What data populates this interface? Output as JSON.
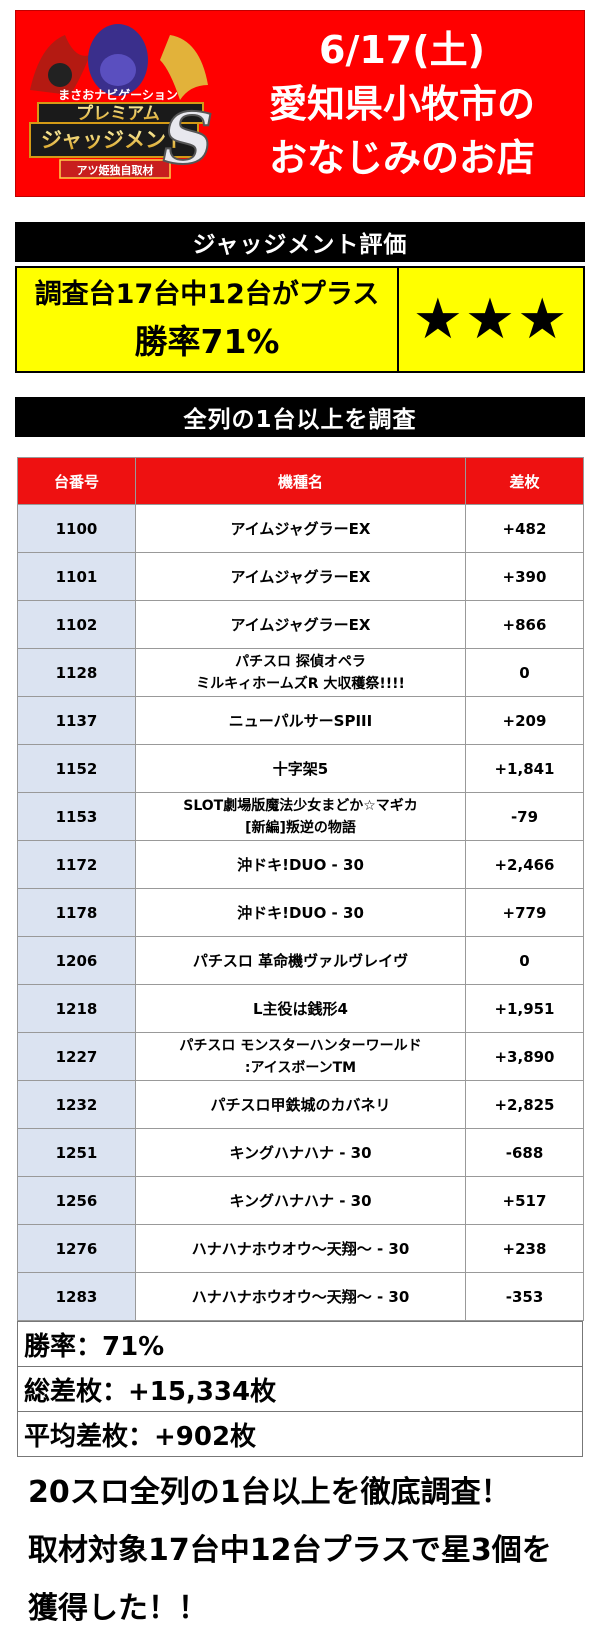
{
  "header": {
    "logo_lines": [
      "まさおナビゲーション",
      "プレミアム",
      "ジャッジメント",
      "アツ姫独自取材"
    ],
    "logo_letter": "S",
    "date": "6/17(土)",
    "line2": "愛知県小牧市の",
    "line3": "おなじみのお店"
  },
  "evaluation": {
    "title": "ジャッジメント評価",
    "summary_line1": "調査台17台中12台がプラス",
    "summary_line2": "勝率71%",
    "stars": "★★★"
  },
  "survey_title": "全列の1台以上を調査",
  "table": {
    "headers": [
      "台番号",
      "機種名",
      "差枚"
    ],
    "rows": [
      {
        "no": "1100",
        "name": [
          "アイムジャグラーEX"
        ],
        "diff": "+482"
      },
      {
        "no": "1101",
        "name": [
          "アイムジャグラーEX"
        ],
        "diff": "+390"
      },
      {
        "no": "1102",
        "name": [
          "アイムジャグラーEX"
        ],
        "diff": "+866"
      },
      {
        "no": "1128",
        "name": [
          "パチスロ 探偵オペラ",
          "ミルキィホームズR 大収穫祭!!!!"
        ],
        "diff": "0"
      },
      {
        "no": "1137",
        "name": [
          "ニューパルサーSPIII"
        ],
        "diff": "+209"
      },
      {
        "no": "1152",
        "name": [
          "十字架5"
        ],
        "diff": "+1,841"
      },
      {
        "no": "1153",
        "name": [
          "SLOT劇場版魔法少女まどか☆マギカ",
          "[新編]叛逆の物語"
        ],
        "diff": "-79"
      },
      {
        "no": "1172",
        "name": [
          "沖ドキ!DUO - 30"
        ],
        "diff": "+2,466"
      },
      {
        "no": "1178",
        "name": [
          "沖ドキ!DUO - 30"
        ],
        "diff": "+779"
      },
      {
        "no": "1206",
        "name": [
          "パチスロ 革命機ヴァルヴレイヴ"
        ],
        "diff": "0"
      },
      {
        "no": "1218",
        "name": [
          "L主役は銭形4"
        ],
        "diff": "+1,951"
      },
      {
        "no": "1227",
        "name": [
          "パチスロ モンスターハンターワールド",
          ":アイスボーンTM"
        ],
        "diff": "+3,890"
      },
      {
        "no": "1232",
        "name": [
          "パチスロ甲鉄城のカバネリ"
        ],
        "diff": "+2,825"
      },
      {
        "no": "1251",
        "name": [
          "キングハナハナ - 30"
        ],
        "diff": "-688"
      },
      {
        "no": "1256",
        "name": [
          "キングハナハナ - 30"
        ],
        "diff": "+517"
      },
      {
        "no": "1276",
        "name": [
          "ハナハナホウオウ～天翔～ - 30"
        ],
        "diff": "+238"
      },
      {
        "no": "1283",
        "name": [
          "ハナハナホウオウ～天翔～ - 30"
        ],
        "diff": "-353"
      }
    ]
  },
  "summary": {
    "win_rate": "勝率：71%",
    "total": "総差枚：+15,334枚",
    "average": "平均差枚：+902枚"
  },
  "footer": {
    "line1": "20スロ全列の1台以上を徹底調査！",
    "line2": "取材対象17台中12台プラスで星3個を",
    "line3": "獲得した！！"
  },
  "colors": {
    "header_red": "#ff0000",
    "table_header_red": "#ee1111",
    "highlight_yellow": "#ffff00",
    "number_cell_blue": "#dbe3f1"
  }
}
